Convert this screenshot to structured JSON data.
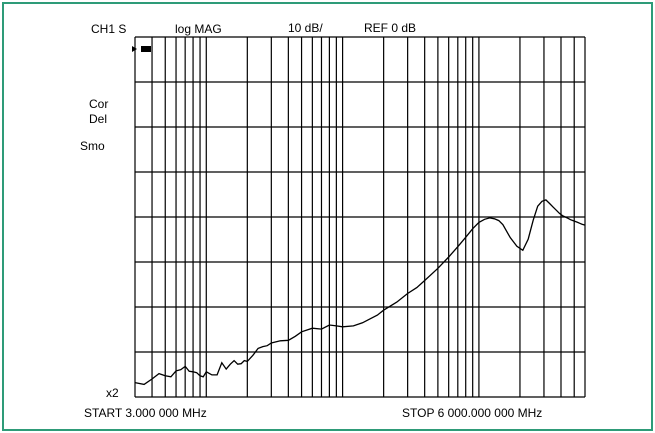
{
  "colors": {
    "frame_border": "#2e9b78",
    "grid": "#000000",
    "trace": "#000000",
    "background": "#ffffff"
  },
  "header": {
    "channel": "CH1 S",
    "format": "log MAG",
    "scale": "10 dB/",
    "reference": "REF 0 dB"
  },
  "annotations": {
    "cor": "Cor",
    "del": "Del",
    "smo": "Smo",
    "x2": "x2"
  },
  "footer": {
    "start": "START  3.000 000 MHz",
    "stop": "STOP 6 000.000 000 MHz"
  },
  "chart_data": {
    "type": "line",
    "xscale": "log",
    "xlim": [
      3,
      6000
    ],
    "xunit": "MHz",
    "ylim": [
      -80,
      0
    ],
    "yunit": "dB",
    "y_per_division": 10,
    "y_divisions": 8,
    "grid": true,
    "series": [
      {
        "x": [
          3,
          3.5,
          4,
          4.5,
          5,
          5.5,
          6,
          6.5,
          7,
          7.5,
          8,
          8.5,
          9,
          9.5,
          10,
          11,
          12,
          13,
          14,
          15,
          16,
          17,
          18,
          19,
          20,
          22,
          24,
          26,
          28,
          30,
          35,
          40,
          45,
          50,
          60,
          70,
          80,
          90,
          100,
          120,
          140,
          160,
          180,
          200,
          250,
          300,
          350,
          400,
          500,
          600,
          700,
          800,
          900,
          1000,
          1100,
          1200,
          1300,
          1400,
          1500,
          1700,
          1900,
          2100,
          2300,
          2500,
          2700,
          2900,
          3100,
          3300,
          3500,
          3700,
          3900,
          4100,
          4300,
          4500,
          4700,
          4900,
          5100,
          5300,
          5500,
          5700,
          6000
        ],
        "y": [
          -76.8,
          -77.2,
          -76.0,
          -74.8,
          -75.3,
          -75.5,
          -74.2,
          -73.9,
          -73.2,
          -74.3,
          -74.4,
          -74.6,
          -75.3,
          -75.5,
          -74.4,
          -75.1,
          -75.1,
          -72.4,
          -73.8,
          -72.7,
          -71.9,
          -72.7,
          -72.6,
          -71.9,
          -72.1,
          -70.7,
          -69.2,
          -68.8,
          -68.6,
          -68.0,
          -67.5,
          -67.4,
          -66.5,
          -65.5,
          -64.7,
          -64.9,
          -64.0,
          -64.2,
          -64.4,
          -64.2,
          -63.5,
          -62.6,
          -61.8,
          -60.7,
          -58.9,
          -57.0,
          -55.7,
          -54.1,
          -51.4,
          -48.9,
          -46.6,
          -44.5,
          -42.6,
          -41.2,
          -40.5,
          -40.2,
          -40.4,
          -40.8,
          -41.7,
          -44.6,
          -46.5,
          -47.4,
          -44.9,
          -40.7,
          -37.6,
          -36.5,
          -36.2,
          -37.0,
          -37.8,
          -38.5,
          -39.2,
          -39.7,
          -40.0,
          -40.3,
          -40.6,
          -40.8,
          -41.0,
          -41.2,
          -41.4,
          -41.6,
          -41.8
        ]
      }
    ]
  }
}
